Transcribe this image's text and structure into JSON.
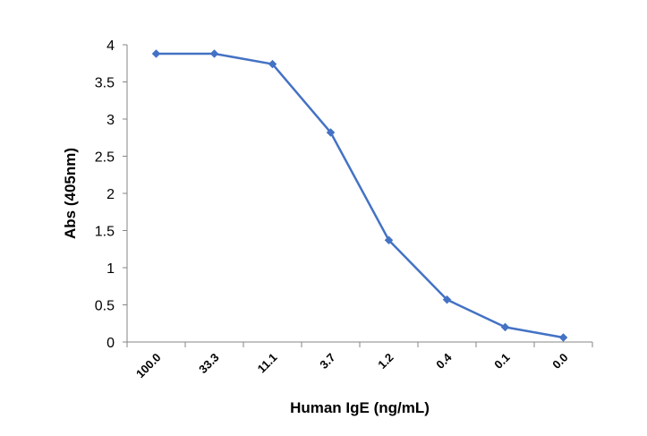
{
  "chart_data": {
    "type": "line",
    "categories": [
      "100.0",
      "33.3",
      "11.1",
      "3.7",
      "1.2",
      "0.4",
      "0.1",
      "0.0"
    ],
    "series": [
      {
        "values": [
          3.88,
          3.88,
          3.74,
          2.82,
          1.37,
          0.57,
          0.2,
          0.06
        ]
      }
    ],
    "y_ticks": [
      "0",
      "0.5",
      "1",
      "1.5",
      "2",
      "2.5",
      "3",
      "3.5",
      "4"
    ],
    "xlabel": "Human IgE (ng/mL)",
    "ylabel": "Abs (405nm)",
    "ylim": [
      0,
      4
    ],
    "grid": false,
    "legend": "none",
    "colors": {
      "line": "#4472C4",
      "axis": "#868686"
    }
  }
}
